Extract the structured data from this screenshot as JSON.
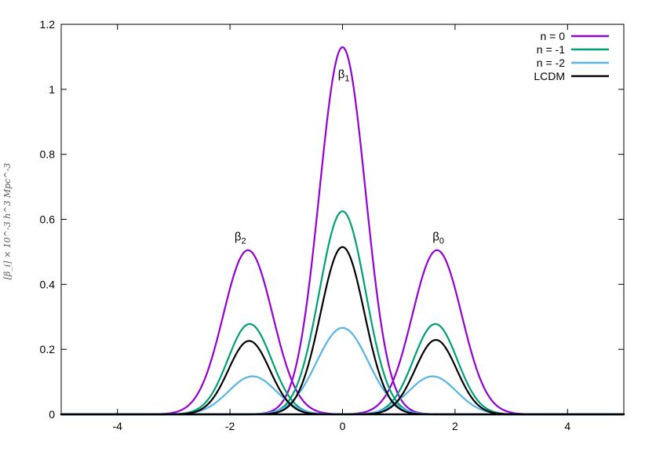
{
  "chart_data": {
    "type": "line",
    "title": "",
    "xlabel": "",
    "ylabel": "[β_i] × 10^-3 h^3 Mpc^-3",
    "xlim": [
      -5,
      5
    ],
    "ylim": [
      0,
      1.2
    ],
    "xticks": [
      "-4",
      "-2",
      "0",
      "2",
      "4"
    ],
    "xtick_values": [
      -4,
      -2,
      0,
      2,
      4
    ],
    "yticks": [
      "0",
      "0.2",
      "0.4",
      "0.6",
      "0.8",
      "1",
      "1.2"
    ],
    "ytick_values": [
      0,
      0.2,
      0.4,
      0.6,
      0.8,
      1.0,
      1.2
    ],
    "grid": false,
    "legend_position": "top-right",
    "peak_labels": [
      {
        "base": "β",
        "sub": "2",
        "x": -1.92,
        "y": 0.535
      },
      {
        "base": "β",
        "sub": "1",
        "x": -0.08,
        "y": 1.035
      },
      {
        "base": "β",
        "sub": "0",
        "x": 1.6,
        "y": 0.535
      }
    ],
    "series": [
      {
        "name": "n = 0",
        "color": "#9400d3",
        "components": [
          {
            "label": "β2",
            "center": -1.68,
            "peak": 0.505,
            "width": 0.62
          },
          {
            "label": "β1",
            "center": 0.0,
            "peak": 1.13,
            "width": 0.58
          },
          {
            "label": "β0",
            "center": 1.68,
            "peak": 0.505,
            "width": 0.62
          }
        ]
      },
      {
        "name": "n = -1",
        "color": "#009e73",
        "components": [
          {
            "label": "β2",
            "center": -1.65,
            "peak": 0.278,
            "width": 0.55
          },
          {
            "label": "β1",
            "center": 0.0,
            "peak": 0.625,
            "width": 0.58
          },
          {
            "label": "β0",
            "center": 1.65,
            "peak": 0.278,
            "width": 0.55
          }
        ]
      },
      {
        "name": "n = -2",
        "color": "#56b4e9",
        "components": [
          {
            "label": "β2",
            "center": -1.6,
            "peak": 0.117,
            "width": 0.6
          },
          {
            "label": "β1",
            "center": 0.0,
            "peak": 0.266,
            "width": 0.65
          },
          {
            "label": "β0",
            "center": 1.6,
            "peak": 0.117,
            "width": 0.6
          }
        ]
      },
      {
        "name": "LCDM",
        "color": "#000000",
        "components": [
          {
            "label": "β2",
            "center": -1.66,
            "peak": 0.226,
            "width": 0.52
          },
          {
            "label": "β1",
            "center": 0.0,
            "peak": 0.515,
            "width": 0.55
          },
          {
            "label": "β0",
            "center": 1.66,
            "peak": 0.229,
            "width": 0.52
          }
        ]
      }
    ]
  }
}
